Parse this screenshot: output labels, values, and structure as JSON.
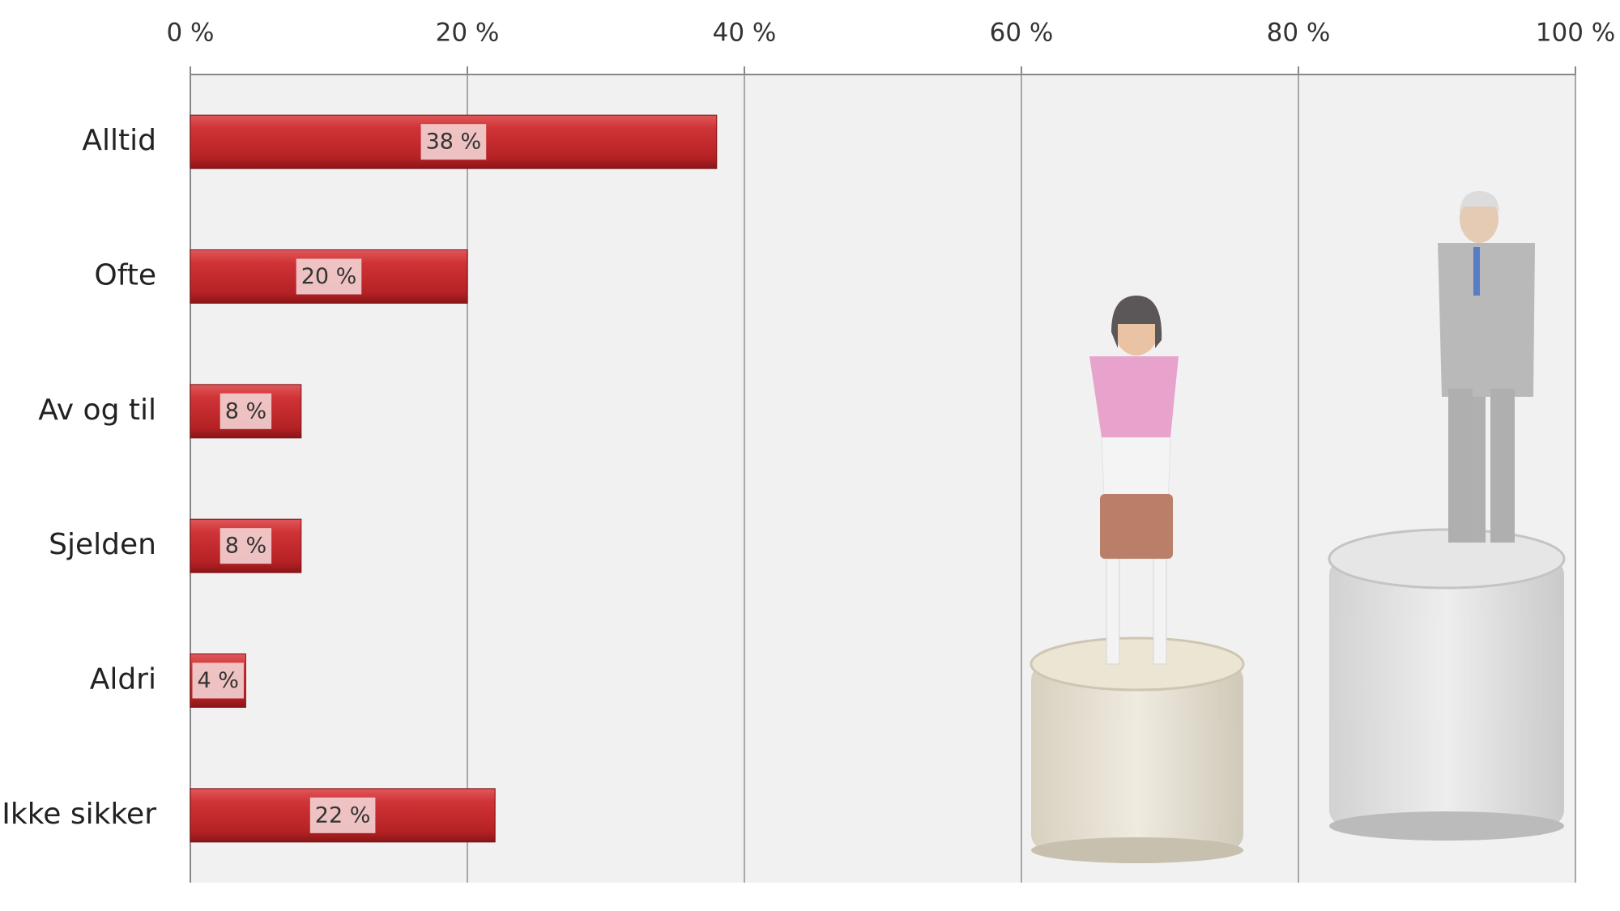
{
  "chart_data": {
    "type": "bar",
    "orientation": "horizontal",
    "categories": [
      "Alltid",
      "Ofte",
      "Av og til",
      "Sjelden",
      "Aldri",
      "Ikke sikker"
    ],
    "values": [
      38,
      20,
      8,
      8,
      4,
      22
    ],
    "value_labels": [
      "38 %",
      "20 %",
      "8 %",
      "8 %",
      "4 %",
      "22 %"
    ],
    "color": "#c0282a",
    "xlim": [
      0,
      100
    ],
    "xticks": [
      {
        "value": 0,
        "label": "0 %"
      },
      {
        "value": 20,
        "label": "20 %"
      },
      {
        "value": 40,
        "label": "40 %"
      },
      {
        "value": 60,
        "label": "60 %"
      },
      {
        "value": 80,
        "label": "80 %"
      },
      {
        "value": 100,
        "label": "100 %"
      }
    ],
    "grid": true
  }
}
